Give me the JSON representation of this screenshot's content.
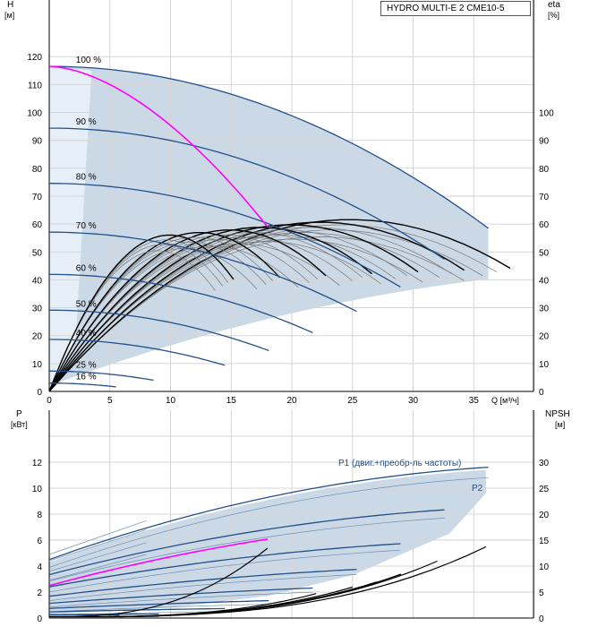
{
  "model": "HYDRO MULTI-E 2 CME10-5",
  "chart_data": [
    {
      "type": "line",
      "panel": "head",
      "ylabel_left": [
        "H",
        "[м]"
      ],
      "ylabel_right": [
        "eta",
        "[%]"
      ],
      "xlabel": "Q [м³/ч]",
      "xlim": [
        0,
        40
      ],
      "ylim": [
        0,
        125
      ],
      "xticks": [
        0,
        5,
        10,
        15,
        20,
        25,
        30,
        35
      ],
      "yticks_left": [
        0,
        10,
        20,
        30,
        40,
        50,
        60,
        70,
        80,
        90,
        100,
        110,
        120
      ],
      "yticks_right": [
        0,
        10,
        20,
        30,
        40,
        50,
        60,
        70,
        80,
        90,
        100
      ],
      "speed_curves": [
        {
          "label": "100 %",
          "s": 1.0
        },
        {
          "label": "90 %",
          "s": 0.9
        },
        {
          "label": "80 %",
          "s": 0.8
        },
        {
          "label": "70 %",
          "s": 0.7
        },
        {
          "label": "60 %",
          "s": 0.6
        },
        {
          "label": "50 %",
          "s": 0.5
        },
        {
          "label": "40 %",
          "s": 0.4
        },
        {
          "label": "25 %",
          "s": 0.25
        },
        {
          "label": "16 %",
          "s": 0.16
        }
      ],
      "head_at_zero_flow": 116.5,
      "max_flow_full_speed": 36.2,
      "head_at_max_flow": 58.5,
      "highlight": {
        "color": "#ff00ff",
        "from_q": 0,
        "to_q": 18,
        "from_h": 116.5,
        "to_h": 59
      }
    },
    {
      "type": "line",
      "panel": "power",
      "ylabel_left": [
        "P",
        "[кВт]"
      ],
      "ylabel_right": [
        "NPSH",
        "[м]"
      ],
      "ylim": [
        0,
        13
      ],
      "yticks_left": [
        0,
        2,
        4,
        6,
        8,
        10,
        12
      ],
      "yticks_right": [
        0,
        5,
        10,
        15,
        20,
        25,
        30
      ],
      "series_labels": {
        "p1": "P1 (двиг.+преобр-ль частоты)",
        "p2": "P2"
      },
      "p1_full": [
        {
          "q": 0,
          "p": 4.3
        },
        {
          "q": 36,
          "p": 11.4
        }
      ],
      "p2_full": [
        {
          "q": 0,
          "p": 3.9
        },
        {
          "q": 36,
          "p": 10.8
        }
      ]
    }
  ]
}
